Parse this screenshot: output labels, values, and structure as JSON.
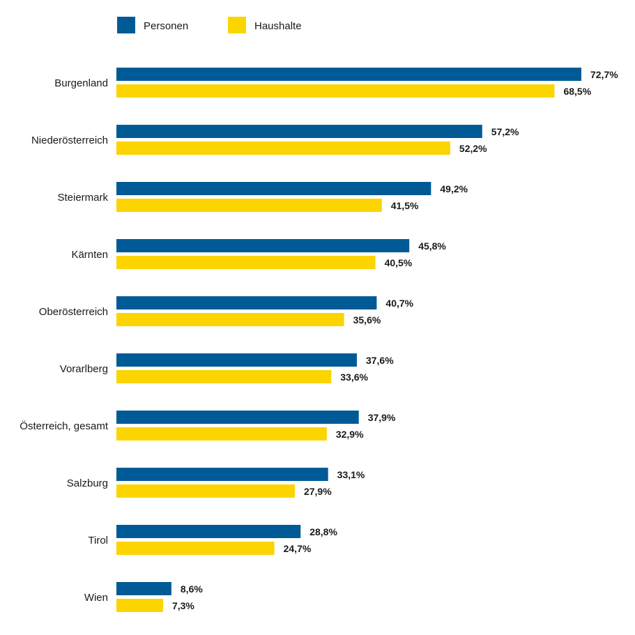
{
  "chart_data": {
    "type": "bar",
    "orientation": "horizontal",
    "title": "",
    "xlabel": "",
    "ylabel": "",
    "xlim": [
      0,
      80
    ],
    "grid": false,
    "legend_placement": "top-left",
    "categories": [
      "Burgenland",
      "Niederösterreich",
      "Steiermark",
      "Kärnten",
      "Oberösterreich",
      "Vorarlberg",
      "Österreich, gesamt",
      "Salzburg",
      "Tirol",
      "Wien"
    ],
    "series": [
      {
        "name": "Personen",
        "color": "#005a96",
        "values": [
          72.7,
          57.2,
          49.2,
          45.8,
          40.7,
          37.6,
          37.9,
          33.1,
          28.8,
          8.6
        ],
        "labels": [
          "72,7%",
          "57,2%",
          "49,2%",
          "45,8%",
          "40,7%",
          "37,6%",
          "37,9%",
          "33,1%",
          "28,8%",
          "8,6%"
        ]
      },
      {
        "name": "Haushalte",
        "color": "#fcd400",
        "values": [
          68.5,
          52.2,
          41.5,
          40.5,
          35.6,
          33.6,
          32.9,
          27.9,
          24.7,
          7.3
        ],
        "labels": [
          "68,5%",
          "52,2%",
          "41,5%",
          "40,5%",
          "35,6%",
          "33,6%",
          "32,9%",
          "27,9%",
          "24,7%",
          "7,3%"
        ]
      }
    ]
  }
}
